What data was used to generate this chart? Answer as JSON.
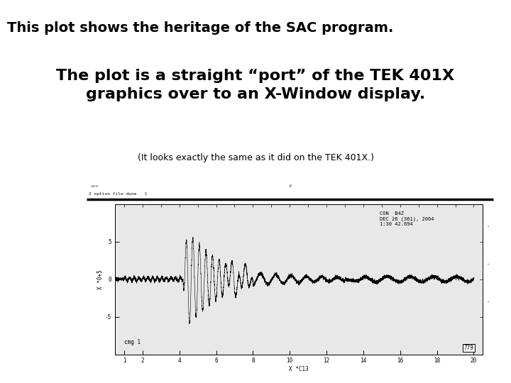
{
  "line1": "This plot shows the heritage of the SAC program.",
  "line2": "The plot is a straight “port” of the TEK 401X",
  "line3": "graphics over to an X-Window display.",
  "line4": "(It looks exactly the same as it did on the TEK 401X.)",
  "background_color": "#ffffff",
  "text_color": "#000000",
  "line1_fontsize": 14,
  "line23_fontsize": 16,
  "line4_fontsize": 9,
  "plot_annotation": "CON  B4Z\nDEC 26 (361), 2004\n1:30 42.694",
  "plot_label_bottom": "cmg 1",
  "plot_x_label": "X *C13",
  "plot_y_label": "X *0+5",
  "plot_number": "779",
  "titlebar_color": "#c8c8c8",
  "menubar_color": "#d8d8d8",
  "plot_bg": "#e8e8e8"
}
